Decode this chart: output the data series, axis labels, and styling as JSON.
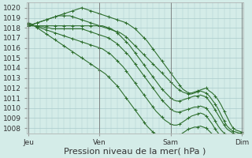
{
  "background_color": "#d4ece8",
  "grid_color": "#aacccc",
  "line_color": "#2d6e2d",
  "ylabel_values": [
    1008,
    1009,
    1010,
    1011,
    1012,
    1013,
    1014,
    1015,
    1016,
    1017,
    1018,
    1019,
    1020
  ],
  "ylim": [
    1007.5,
    1020.5
  ],
  "xtick_labels": [
    "Jeu",
    "Ven",
    "Sam",
    "Dim"
  ],
  "xlabel": "Pression niveau de la mer( hPa )",
  "xlabel_fontsize": 8,
  "tick_fontsize": 6.5,
  "n_points": 73,
  "x_ticks_pos": [
    0,
    24,
    48,
    72
  ],
  "linewidth": 0.8,
  "marker_size": 2.5,
  "series": [
    [
      1018.2,
      1018.3,
      1018.4,
      1018.5,
      1018.6,
      1018.7,
      1018.8,
      1018.9,
      1019.0,
      1019.1,
      1019.2,
      1019.3,
      1019.4,
      1019.5,
      1019.6,
      1019.7,
      1019.8,
      1019.9,
      1020.0,
      1019.9,
      1019.8,
      1019.7,
      1019.6,
      1019.5,
      1019.4,
      1019.3,
      1019.2,
      1019.1,
      1019.0,
      1018.9,
      1018.8,
      1018.7,
      1018.6,
      1018.5,
      1018.3,
      1018.1,
      1017.9,
      1017.6,
      1017.3,
      1017.0,
      1016.7,
      1016.3,
      1015.9,
      1015.5,
      1015.1,
      1014.7,
      1014.3,
      1013.9,
      1013.5,
      1013.1,
      1012.7,
      1012.3,
      1011.9,
      1011.7,
      1011.5,
      1011.5,
      1011.6,
      1011.7,
      1011.8,
      1011.9,
      1012.0,
      1011.7,
      1011.5,
      1011.2,
      1010.8,
      1010.3,
      1009.7,
      1009.1,
      1008.5,
      1008.0,
      1007.8,
      1007.7,
      1007.6
    ],
    [
      1018.2,
      1018.3,
      1018.4,
      1018.5,
      1018.6,
      1018.7,
      1018.8,
      1018.9,
      1019.0,
      1019.1,
      1019.2,
      1019.2,
      1019.2,
      1019.2,
      1019.2,
      1019.1,
      1019.0,
      1018.9,
      1018.8,
      1018.7,
      1018.6,
      1018.5,
      1018.4,
      1018.3,
      1018.2,
      1018.1,
      1018.0,
      1017.9,
      1017.8,
      1017.7,
      1017.6,
      1017.5,
      1017.3,
      1017.1,
      1016.8,
      1016.5,
      1016.2,
      1015.9,
      1015.6,
      1015.3,
      1015.0,
      1014.7,
      1014.4,
      1014.1,
      1013.8,
      1013.5,
      1013.2,
      1012.9,
      1012.6,
      1012.3,
      1012.0,
      1011.8,
      1011.6,
      1011.5,
      1011.4,
      1011.4,
      1011.5,
      1011.6,
      1011.7,
      1011.6,
      1011.5,
      1011.2,
      1010.8,
      1010.4,
      1009.9,
      1009.3,
      1008.7,
      1008.2,
      1007.9,
      1007.7,
      1007.6,
      1007.5,
      1007.5
    ],
    [
      1018.2,
      1018.2,
      1018.2,
      1018.2,
      1018.2,
      1018.2,
      1018.2,
      1018.2,
      1018.2,
      1018.2,
      1018.2,
      1018.2,
      1018.2,
      1018.2,
      1018.2,
      1018.2,
      1018.2,
      1018.2,
      1018.2,
      1018.2,
      1018.2,
      1018.2,
      1018.2,
      1018.2,
      1018.2,
      1018.2,
      1018.1,
      1018.0,
      1017.9,
      1017.7,
      1017.5,
      1017.2,
      1016.9,
      1016.6,
      1016.3,
      1015.9,
      1015.5,
      1015.1,
      1014.7,
      1014.3,
      1013.9,
      1013.5,
      1013.1,
      1012.7,
      1012.3,
      1011.9,
      1011.6,
      1011.3,
      1011.0,
      1010.8,
      1010.7,
      1010.7,
      1010.8,
      1010.9,
      1011.0,
      1011.1,
      1011.2,
      1011.2,
      1011.3,
      1011.2,
      1011.1,
      1010.7,
      1010.3,
      1009.8,
      1009.3,
      1008.8,
      1008.3,
      1007.9,
      1007.7,
      1007.5,
      1007.4,
      1007.4,
      1007.4
    ],
    [
      1018.3,
      1018.2,
      1018.2,
      1018.2,
      1018.1,
      1018.1,
      1018.0,
      1018.0,
      1017.9,
      1017.9,
      1017.9,
      1017.9,
      1017.9,
      1017.9,
      1017.9,
      1017.9,
      1017.9,
      1017.9,
      1017.9,
      1017.8,
      1017.7,
      1017.6,
      1017.5,
      1017.4,
      1017.3,
      1017.2,
      1017.1,
      1017.0,
      1016.8,
      1016.6,
      1016.4,
      1016.1,
      1015.8,
      1015.5,
      1015.2,
      1014.8,
      1014.4,
      1014.0,
      1013.6,
      1013.2,
      1012.8,
      1012.4,
      1012.0,
      1011.6,
      1011.2,
      1010.8,
      1010.5,
      1010.2,
      1009.9,
      1009.7,
      1009.6,
      1009.6,
      1009.7,
      1009.8,
      1009.9,
      1010.0,
      1010.1,
      1010.1,
      1010.2,
      1010.1,
      1010.0,
      1009.6,
      1009.2,
      1008.7,
      1008.2,
      1007.8,
      1007.5,
      1007.3,
      1007.2,
      1007.2,
      1007.2,
      1007.2,
      1007.2
    ],
    [
      1018.4,
      1018.3,
      1018.2,
      1018.1,
      1018.0,
      1017.9,
      1017.8,
      1017.7,
      1017.6,
      1017.5,
      1017.4,
      1017.3,
      1017.2,
      1017.1,
      1017.0,
      1016.9,
      1016.8,
      1016.7,
      1016.6,
      1016.5,
      1016.4,
      1016.3,
      1016.2,
      1016.1,
      1016.0,
      1015.9,
      1015.7,
      1015.5,
      1015.3,
      1015.0,
      1014.7,
      1014.4,
      1014.1,
      1013.7,
      1013.3,
      1012.9,
      1012.5,
      1012.1,
      1011.7,
      1011.3,
      1010.9,
      1010.5,
      1010.1,
      1009.7,
      1009.4,
      1009.1,
      1008.8,
      1008.6,
      1008.4,
      1008.3,
      1008.3,
      1008.4,
      1008.6,
      1008.8,
      1009.0,
      1009.2,
      1009.3,
      1009.4,
      1009.5,
      1009.4,
      1009.2,
      1008.8,
      1008.4,
      1007.9,
      1007.5,
      1007.2,
      1007.1,
      1007.1,
      1007.2,
      1007.3,
      1007.4,
      1007.5,
      1007.5
    ],
    [
      1018.5,
      1018.4,
      1018.2,
      1018.0,
      1017.8,
      1017.6,
      1017.4,
      1017.2,
      1017.0,
      1016.8,
      1016.6,
      1016.4,
      1016.2,
      1016.0,
      1015.8,
      1015.6,
      1015.4,
      1015.2,
      1015.0,
      1014.8,
      1014.6,
      1014.4,
      1014.2,
      1014.0,
      1013.8,
      1013.6,
      1013.4,
      1013.1,
      1012.8,
      1012.5,
      1012.2,
      1011.8,
      1011.4,
      1011.0,
      1010.6,
      1010.2,
      1009.8,
      1009.4,
      1009.0,
      1008.6,
      1008.2,
      1007.9,
      1007.6,
      1007.4,
      1007.2,
      1007.1,
      1007.0,
      1007.0,
      1007.0,
      1007.0,
      1007.1,
      1007.3,
      1007.5,
      1007.7,
      1007.9,
      1008.0,
      1008.1,
      1008.1,
      1008.2,
      1008.1,
      1008.0,
      1007.7,
      1007.4,
      1007.1,
      1007.0,
      1007.0,
      1007.0,
      1007.0,
      1007.0,
      1007.0,
      1007.0,
      1007.0,
      1007.0
    ]
  ]
}
